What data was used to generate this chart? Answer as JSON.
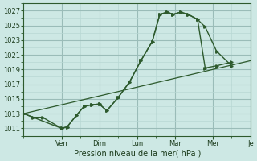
{
  "bg_color": "#cde8e4",
  "grid_minor_color": "#b8d8d4",
  "grid_major_color": "#9abcb8",
  "line_color": "#2d5a2d",
  "xlabel": "Pression niveau de la mer( hPa )",
  "ylim": [
    1010.0,
    1028.0
  ],
  "yticks": [
    1011,
    1013,
    1015,
    1017,
    1019,
    1021,
    1023,
    1025,
    1027
  ],
  "xlim": [
    0,
    12
  ],
  "xtick_positions": [
    2,
    4,
    6,
    8,
    10,
    12
  ],
  "xtick_labels": [
    "Ven",
    "Dim",
    "Lun",
    "Mar",
    "Mer",
    "Je"
  ],
  "line1_x": [
    0.0,
    0.5,
    1.0,
    2.0,
    2.3,
    2.8,
    3.2,
    3.6,
    4.0,
    4.4,
    5.0,
    5.6,
    6.2,
    6.8,
    7.2,
    7.6,
    7.9,
    8.3,
    8.7,
    9.2,
    9.6,
    10.2,
    11.0
  ],
  "line1_y": [
    1013.0,
    1012.5,
    1012.5,
    1011.0,
    1011.2,
    1012.8,
    1014.0,
    1014.2,
    1014.3,
    1013.4,
    1015.2,
    1017.3,
    1020.2,
    1022.8,
    1026.5,
    1026.8,
    1026.5,
    1026.8,
    1026.5,
    1025.8,
    1024.8,
    1021.5,
    1019.5
  ],
  "line2_x": [
    0.0,
    2.0,
    2.3,
    2.8,
    3.2,
    3.6,
    4.0,
    4.4,
    5.0,
    5.6,
    6.2,
    6.8,
    7.2,
    7.6,
    7.9,
    8.3,
    8.7,
    9.2,
    9.6,
    10.2,
    11.0
  ],
  "line2_y": [
    1013.0,
    1011.0,
    1011.2,
    1012.8,
    1014.0,
    1014.2,
    1014.3,
    1013.4,
    1015.2,
    1017.3,
    1020.2,
    1022.8,
    1026.5,
    1026.8,
    1026.5,
    1026.8,
    1026.5,
    1025.8,
    1019.2,
    1019.5,
    1020.0
  ],
  "line3_x": [
    0.0,
    12.0
  ],
  "line3_y": [
    1013.0,
    1020.2
  ]
}
